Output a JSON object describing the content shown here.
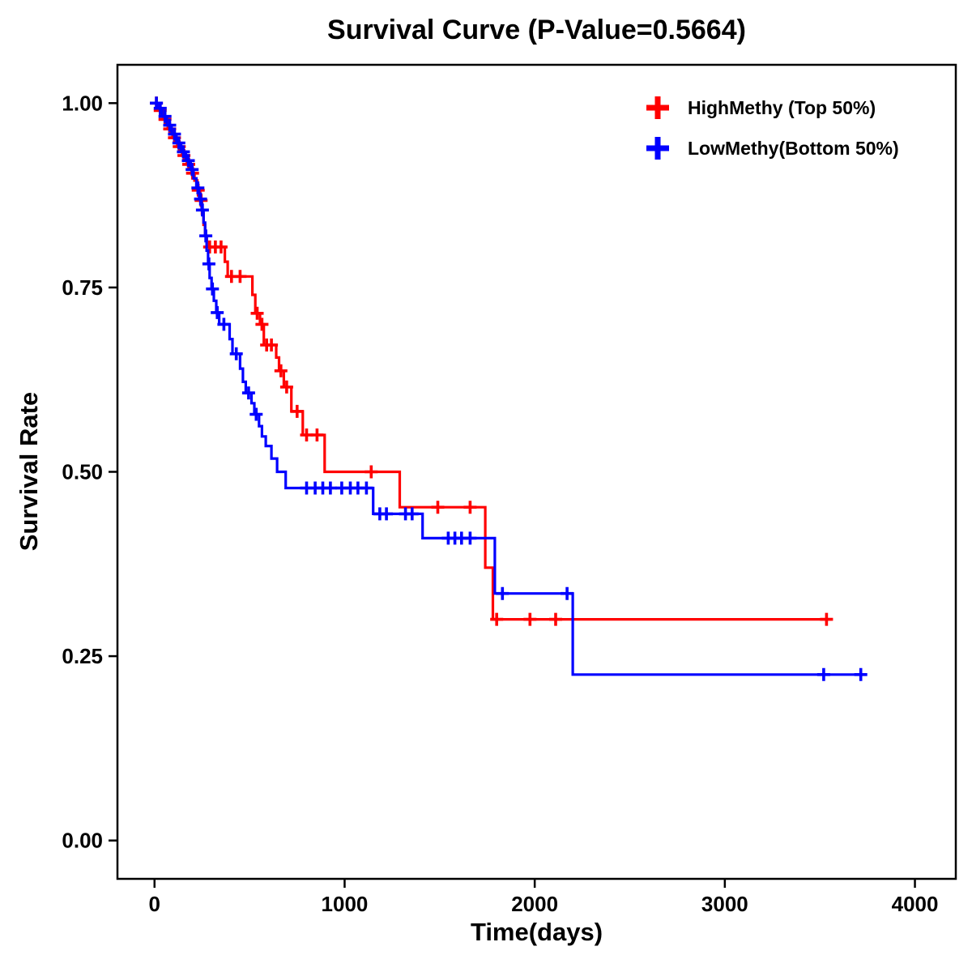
{
  "chart_data": {
    "type": "line",
    "subtype": "kaplan-meier-step-survival",
    "title": "Survival Curve (P-Value=0.5664)",
    "p_value": 0.5664,
    "xlabel": "Time(days)",
    "ylabel": "Survival Rate",
    "xlim": [
      -195,
      4215
    ],
    "ylim": [
      -0.052,
      1.052
    ],
    "xticks": [
      0,
      1000,
      2000,
      3000,
      4000
    ],
    "xtick_labels": [
      "0",
      "1000",
      "2000",
      "3000",
      "4000"
    ],
    "yticks": [
      0,
      0.25,
      0.5,
      0.75,
      1
    ],
    "ytick_labels": [
      "0.00",
      "0.25",
      "0.50",
      "0.75",
      "1.00"
    ],
    "grid": false,
    "legend_position": "top-right-inside",
    "legend": [
      {
        "label": "HighMethy (Top 50%)",
        "color": "#FF0000"
      },
      {
        "label": "LowMethy(Bottom 50%)",
        "color": "#0000FF"
      }
    ],
    "series": [
      {
        "name": "HighMethy (Top 50%)",
        "color": "#FF0000",
        "steps": [
          [
            0,
            1.0
          ],
          [
            20,
            0.99
          ],
          [
            45,
            0.978
          ],
          [
            70,
            0.965
          ],
          [
            95,
            0.953
          ],
          [
            120,
            0.941
          ],
          [
            145,
            0.929
          ],
          [
            170,
            0.917
          ],
          [
            195,
            0.905
          ],
          [
            210,
            0.895
          ],
          [
            225,
            0.882
          ],
          [
            240,
            0.868
          ],
          [
            250,
            0.85
          ],
          [
            258,
            0.835
          ],
          [
            266,
            0.82
          ],
          [
            275,
            0.805
          ],
          [
            370,
            0.785
          ],
          [
            385,
            0.765
          ],
          [
            515,
            0.74
          ],
          [
            530,
            0.715
          ],
          [
            555,
            0.7
          ],
          [
            575,
            0.672
          ],
          [
            640,
            0.655
          ],
          [
            655,
            0.637
          ],
          [
            680,
            0.615
          ],
          [
            720,
            0.582
          ],
          [
            780,
            0.55
          ],
          [
            895,
            0.5
          ],
          [
            1290,
            0.452
          ],
          [
            1740,
            0.37
          ],
          [
            1780,
            0.3
          ],
          [
            3560,
            0.3
          ]
        ],
        "censors": [
          [
            10,
            1.0
          ],
          [
            30,
            0.99
          ],
          [
            55,
            0.978
          ],
          [
            80,
            0.965
          ],
          [
            105,
            0.953
          ],
          [
            130,
            0.941
          ],
          [
            155,
            0.929
          ],
          [
            180,
            0.917
          ],
          [
            200,
            0.905
          ],
          [
            230,
            0.882
          ],
          [
            245,
            0.868
          ],
          [
            290,
            0.805
          ],
          [
            320,
            0.805
          ],
          [
            350,
            0.805
          ],
          [
            405,
            0.765
          ],
          [
            450,
            0.765
          ],
          [
            540,
            0.715
          ],
          [
            565,
            0.7
          ],
          [
            590,
            0.672
          ],
          [
            615,
            0.672
          ],
          [
            665,
            0.637
          ],
          [
            695,
            0.615
          ],
          [
            750,
            0.582
          ],
          [
            800,
            0.55
          ],
          [
            855,
            0.55
          ],
          [
            1140,
            0.5
          ],
          [
            1490,
            0.452
          ],
          [
            1660,
            0.452
          ],
          [
            1800,
            0.3
          ],
          [
            1975,
            0.3
          ],
          [
            2110,
            0.3
          ],
          [
            3535,
            0.3
          ]
        ]
      },
      {
        "name": "LowMethy(Bottom 50%)",
        "color": "#0000FF",
        "steps": [
          [
            0,
            1.0
          ],
          [
            15,
            0.993
          ],
          [
            40,
            0.982
          ],
          [
            65,
            0.97
          ],
          [
            90,
            0.958
          ],
          [
            115,
            0.946
          ],
          [
            140,
            0.934
          ],
          [
            165,
            0.922
          ],
          [
            190,
            0.91
          ],
          [
            205,
            0.898
          ],
          [
            220,
            0.885
          ],
          [
            235,
            0.87
          ],
          [
            248,
            0.855
          ],
          [
            258,
            0.838
          ],
          [
            266,
            0.82
          ],
          [
            274,
            0.8
          ],
          [
            282,
            0.782
          ],
          [
            290,
            0.763
          ],
          [
            300,
            0.748
          ],
          [
            312,
            0.732
          ],
          [
            325,
            0.716
          ],
          [
            340,
            0.7
          ],
          [
            395,
            0.68
          ],
          [
            410,
            0.66
          ],
          [
            450,
            0.64
          ],
          [
            465,
            0.622
          ],
          [
            480,
            0.607
          ],
          [
            510,
            0.593
          ],
          [
            525,
            0.578
          ],
          [
            550,
            0.562
          ],
          [
            565,
            0.548
          ],
          [
            585,
            0.535
          ],
          [
            615,
            0.518
          ],
          [
            645,
            0.5
          ],
          [
            690,
            0.478
          ],
          [
            1150,
            0.443
          ],
          [
            1410,
            0.41
          ],
          [
            1790,
            0.335
          ],
          [
            2200,
            0.225
          ],
          [
            3720,
            0.225
          ]
        ],
        "censors": [
          [
            10,
            1.0
          ],
          [
            30,
            0.993
          ],
          [
            55,
            0.982
          ],
          [
            80,
            0.97
          ],
          [
            105,
            0.958
          ],
          [
            128,
            0.946
          ],
          [
            152,
            0.934
          ],
          [
            178,
            0.922
          ],
          [
            198,
            0.91
          ],
          [
            228,
            0.885
          ],
          [
            242,
            0.87
          ],
          [
            252,
            0.855
          ],
          [
            270,
            0.82
          ],
          [
            286,
            0.782
          ],
          [
            305,
            0.748
          ],
          [
            330,
            0.716
          ],
          [
            365,
            0.7
          ],
          [
            430,
            0.66
          ],
          [
            495,
            0.607
          ],
          [
            535,
            0.578
          ],
          [
            800,
            0.478
          ],
          [
            845,
            0.478
          ],
          [
            885,
            0.478
          ],
          [
            925,
            0.478
          ],
          [
            985,
            0.478
          ],
          [
            1030,
            0.478
          ],
          [
            1070,
            0.478
          ],
          [
            1115,
            0.478
          ],
          [
            1185,
            0.443
          ],
          [
            1220,
            0.443
          ],
          [
            1320,
            0.443
          ],
          [
            1355,
            0.443
          ],
          [
            1545,
            0.41
          ],
          [
            1580,
            0.41
          ],
          [
            1615,
            0.41
          ],
          [
            1660,
            0.41
          ],
          [
            1830,
            0.335
          ],
          [
            2170,
            0.335
          ],
          [
            3520,
            0.225
          ],
          [
            3715,
            0.225
          ]
        ]
      }
    ]
  }
}
